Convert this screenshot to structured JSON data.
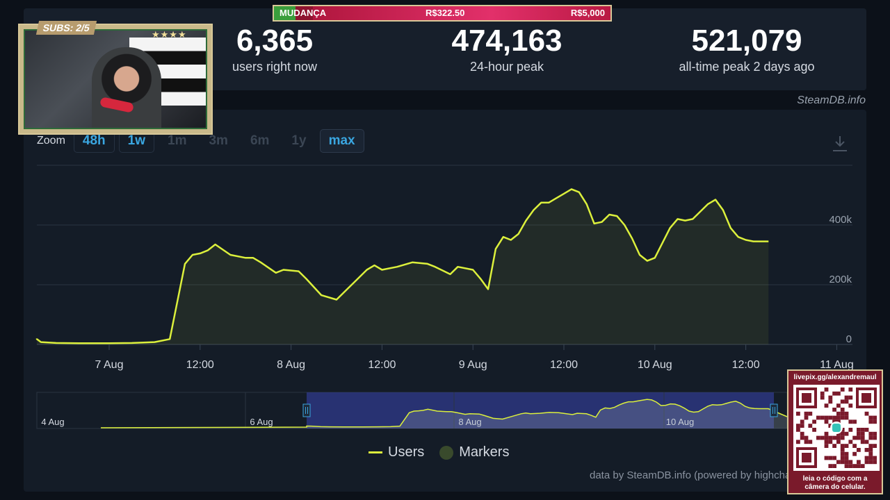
{
  "stats": {
    "current": {
      "value": "6,365",
      "label": "users right now"
    },
    "peak24": {
      "value": "474,163",
      "label": "24-hour peak"
    },
    "alltime": {
      "value": "521,079",
      "label": "all-time peak 2 days ago"
    }
  },
  "credit_top": "SteamDB.info",
  "zoom": {
    "label": "Zoom",
    "buttons": [
      {
        "label": "48h",
        "state": "available"
      },
      {
        "label": "1w",
        "state": "available"
      },
      {
        "label": "1m",
        "state": "disabled"
      },
      {
        "label": "3m",
        "state": "disabled"
      },
      {
        "label": "6m",
        "state": "disabled"
      },
      {
        "label": "1y",
        "state": "disabled"
      },
      {
        "label": "max",
        "state": "active"
      }
    ]
  },
  "legend": {
    "users": "Users",
    "markers": "Markers"
  },
  "data_credit": "data by SteamDB.info (powered by highcharts.com)",
  "colors": {
    "line": "#dcf03c",
    "marker": "#394a2c",
    "navigator_selection": "#2f3a8c"
  },
  "overlay": {
    "subs": "SUBS: 2/5",
    "stars": "★★★★",
    "donation": {
      "title": "MUDANÇA",
      "current": "R$322.50",
      "goal": "R$5,000",
      "progress": 0.0645
    },
    "qr": {
      "url": "livepix.gg/alexandremaul",
      "note_line1": "leia o código com a",
      "note_line2": "câmera do celular."
    }
  },
  "chart_data": {
    "type": "area",
    "x_ticks": [
      "7 Aug",
      "12:00",
      "8 Aug",
      "12:00",
      "9 Aug",
      "12:00",
      "10 Aug",
      "12:00",
      "11 Aug"
    ],
    "y_ticks": [
      "0",
      "200k",
      "400k"
    ],
    "ylim": [
      0,
      600000
    ],
    "grid": true,
    "series": [
      {
        "name": "Users",
        "x_hours": [
          0,
          1,
          3,
          5,
          8,
          12,
          15,
          18,
          20,
          22,
          23,
          24,
          25,
          26,
          28,
          30,
          31,
          32,
          34,
          35,
          37,
          38,
          40,
          42,
          44,
          46,
          47,
          48,
          50,
          52,
          54,
          55,
          57,
          58,
          60,
          61,
          62,
          63,
          64,
          65,
          66,
          67,
          68,
          69,
          70,
          71,
          72,
          73,
          74,
          75,
          76,
          77,
          78,
          79,
          80,
          81,
          82,
          83,
          84,
          85,
          86,
          87,
          88,
          89,
          90,
          91,
          92,
          93,
          94,
          95,
          96,
          97,
          98,
          99
        ],
        "values": [
          20000,
          18000,
          8000,
          5000,
          4000,
          4000,
          5000,
          8000,
          18000,
          270000,
          300000,
          305000,
          315000,
          335000,
          300000,
          290000,
          290000,
          275000,
          240000,
          250000,
          245000,
          220000,
          165000,
          150000,
          200000,
          250000,
          265000,
          250000,
          260000,
          275000,
          270000,
          260000,
          235000,
          260000,
          250000,
          220000,
          185000,
          320000,
          360000,
          350000,
          370000,
          415000,
          450000,
          475000,
          475000,
          490000,
          505000,
          520000,
          510000,
          470000,
          405000,
          410000,
          435000,
          430000,
          400000,
          355000,
          300000,
          280000,
          290000,
          340000,
          390000,
          420000,
          415000,
          420000,
          445000,
          470000,
          485000,
          450000,
          390000,
          360000,
          350000,
          345000,
          345000,
          345000
        ]
      }
    ],
    "navigator": {
      "labels": [
        "4 Aug",
        "6 Aug",
        "8 Aug",
        "10 Aug"
      ]
    }
  }
}
